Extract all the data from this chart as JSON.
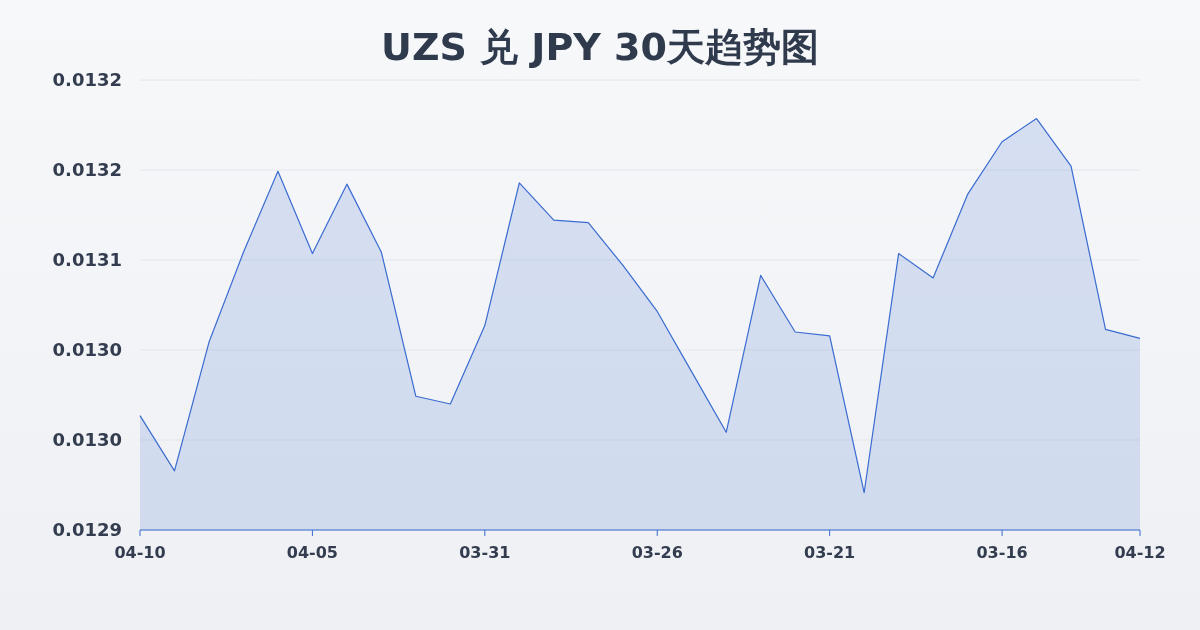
{
  "chart_data": {
    "type": "area",
    "title": "UZS 兑 JPY 30天趋势图",
    "categories": [
      "04-10",
      null,
      null,
      null,
      null,
      "04-05",
      null,
      null,
      null,
      null,
      "03-31",
      null,
      null,
      null,
      null,
      "03-26",
      null,
      null,
      null,
      null,
      "03-21",
      null,
      null,
      null,
      null,
      "03-16",
      null,
      null,
      null,
      "04-12"
    ],
    "series": [
      {
        "color": "#3a6bd0",
        "values": [
          0.012989,
          0.012946,
          0.013046,
          0.013116,
          0.013179,
          0.013115,
          0.013169,
          0.013116,
          0.013004,
          0.012998,
          0.013059,
          0.01317,
          0.013141,
          0.013139,
          0.013106,
          0.01307,
          0.013023,
          0.012976,
          0.013098,
          0.013054,
          0.013051,
          0.012929,
          0.013115,
          0.013096,
          0.013161,
          0.013202,
          0.01322,
          0.013183,
          0.013056,
          0.013049
        ]
      }
    ],
    "ylim": [
      0.0129,
      0.01325
    ],
    "yticks": [
      {
        "value": 0.0129,
        "label": "0.0129"
      },
      {
        "value": 0.01297,
        "label": "0.0130"
      },
      {
        "value": 0.01304,
        "label": "0.0130"
      },
      {
        "value": 0.01311,
        "label": "0.0131"
      },
      {
        "value": 0.01318,
        "label": "0.0132"
      },
      {
        "value": 0.01325,
        "label": "0.0132"
      }
    ],
    "grid": "y"
  }
}
